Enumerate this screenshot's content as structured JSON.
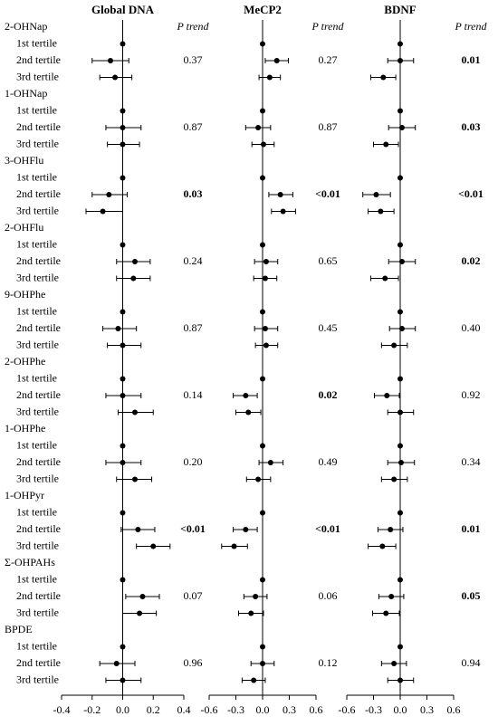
{
  "chart_data": {
    "type": "forest",
    "groups": [
      {
        "name": "2-OHNap",
        "tertiles": [
          "1st tertile",
          "2nd tertile",
          "3rd tertile"
        ]
      },
      {
        "name": "1-OHNap",
        "tertiles": [
          "1st tertile",
          "2nd tertile",
          "3rd tertile"
        ]
      },
      {
        "name": "3-OHFlu",
        "tertiles": [
          "1st tertile",
          "2nd tertile",
          "3rd tertile"
        ]
      },
      {
        "name": "2-OHFlu",
        "tertiles": [
          "1st tertile",
          "2nd tertile",
          "3rd tertile"
        ]
      },
      {
        "name": "9-OHPhe",
        "tertiles": [
          "1st tertile",
          "2nd tertile",
          "3rd tertile"
        ]
      },
      {
        "name": "2-OHPhe",
        "tertiles": [
          "1st tertile",
          "2nd tertile",
          "3rd tertile"
        ]
      },
      {
        "name": "1-OHPhe",
        "tertiles": [
          "1st tertile",
          "2nd tertile",
          "3rd tertile"
        ]
      },
      {
        "name": "1-OHPyr",
        "tertiles": [
          "1st tertile",
          "2nd tertile",
          "3rd tertile"
        ]
      },
      {
        "name": "Σ-OHPAHs",
        "tertiles": [
          "1st tertile",
          "2nd tertile",
          "3rd tertile"
        ]
      },
      {
        "name": "BPDE",
        "tertiles": [
          "1st tertile",
          "2nd tertile",
          "3rd tertile"
        ]
      }
    ],
    "panels": [
      {
        "title": "Global DNA",
        "p_label": "P trend",
        "xlim": [
          -0.4,
          0.4
        ],
        "xticks": [
          -0.4,
          -0.2,
          {
            "value": 0,
            "label": "0.0"
          },
          0.2,
          0.4
        ],
        "estimates": [
          [
            0,
            -0.08,
            -0.05
          ],
          [
            0,
            0.0,
            0.0
          ],
          [
            0,
            -0.09,
            -0.13
          ],
          [
            0,
            0.08,
            0.07
          ],
          [
            0,
            -0.03,
            0.0
          ],
          [
            0,
            0.0,
            0.08
          ],
          [
            0,
            0.0,
            0.08
          ],
          [
            0,
            0.1,
            0.2
          ],
          [
            0,
            0.13,
            0.11
          ],
          [
            0,
            -0.04,
            0.0
          ]
        ],
        "lower": [
          [
            null,
            -0.2,
            -0.15
          ],
          [
            null,
            -0.11,
            -0.1
          ],
          [
            null,
            -0.2,
            -0.24
          ],
          [
            null,
            -0.04,
            -0.04
          ],
          [
            null,
            -0.13,
            -0.1
          ],
          [
            null,
            -0.11,
            -0.03
          ],
          [
            null,
            -0.11,
            -0.04
          ],
          [
            null,
            -0.01,
            0.09
          ],
          [
            null,
            0.02,
            0.0
          ],
          [
            null,
            -0.15,
            -0.11
          ]
        ],
        "upper": [
          [
            null,
            0.04,
            0.06
          ],
          [
            null,
            0.12,
            0.11
          ],
          [
            null,
            0.03,
            0.0
          ],
          [
            null,
            0.18,
            0.18
          ],
          [
            null,
            0.09,
            0.12
          ],
          [
            null,
            0.12,
            0.2
          ],
          [
            null,
            0.12,
            0.19
          ],
          [
            null,
            0.21,
            0.31
          ],
          [
            null,
            0.24,
            0.22
          ],
          [
            null,
            0.08,
            0.12
          ]
        ],
        "p_trend": [
          "0.37",
          "0.87",
          "0.03",
          "0.24",
          "0.87",
          "0.14",
          "0.20",
          "<0.01",
          "0.07",
          "0.96"
        ],
        "p_bold": [
          false,
          false,
          true,
          false,
          false,
          false,
          false,
          true,
          false,
          false
        ]
      },
      {
        "title": "MeCP2",
        "p_label": "P trend",
        "xlim": [
          -0.6,
          0.6
        ],
        "xticks": [
          -0.6,
          -0.3,
          {
            "value": 0,
            "label": "0.0"
          },
          0.3,
          0.6
        ],
        "estimates": [
          [
            0,
            0.16,
            0.08
          ],
          [
            0,
            -0.05,
            0.01
          ],
          [
            0,
            0.2,
            0.23
          ],
          [
            0,
            0.04,
            0.03
          ],
          [
            0,
            0.03,
            0.04
          ],
          [
            0,
            -0.19,
            -0.16
          ],
          [
            0,
            0.09,
            -0.05
          ],
          [
            0,
            -0.19,
            -0.32
          ],
          [
            0,
            -0.08,
            -0.13
          ],
          [
            0,
            0.0,
            -0.1
          ]
        ],
        "lower": [
          [
            null,
            0.03,
            -0.04
          ],
          [
            null,
            -0.19,
            -0.12
          ],
          [
            null,
            0.07,
            0.1
          ],
          [
            null,
            -0.09,
            -0.1
          ],
          [
            null,
            -0.09,
            -0.08
          ],
          [
            null,
            -0.33,
            -0.3
          ],
          [
            null,
            -0.04,
            -0.18
          ],
          [
            null,
            -0.33,
            -0.46
          ],
          [
            null,
            -0.21,
            -0.27
          ],
          [
            null,
            -0.13,
            -0.23
          ]
        ],
        "upper": [
          [
            null,
            0.29,
            0.2
          ],
          [
            null,
            0.09,
            0.13
          ],
          [
            null,
            0.34,
            0.37
          ],
          [
            null,
            0.17,
            0.16
          ],
          [
            null,
            0.17,
            0.17
          ],
          [
            null,
            -0.06,
            -0.02
          ],
          [
            null,
            0.23,
            0.09
          ],
          [
            null,
            -0.06,
            -0.17
          ],
          [
            null,
            0.05,
            0.01
          ],
          [
            null,
            0.13,
            0.03
          ]
        ],
        "p_trend": [
          "0.27",
          "0.87",
          "<0.01",
          "0.65",
          "0.45",
          "0.02",
          "0.49",
          "<0.01",
          "0.06",
          "0.12"
        ],
        "p_bold": [
          false,
          false,
          true,
          false,
          false,
          true,
          false,
          true,
          false,
          false
        ]
      },
      {
        "title": "BDNF",
        "p_label": "P trend",
        "xlim": [
          -0.6,
          0.6
        ],
        "xticks": [
          -0.6,
          -0.3,
          {
            "value": 0,
            "label": "0.0"
          },
          0.3,
          0.6
        ],
        "estimates": [
          [
            0,
            0.0,
            -0.19
          ],
          [
            0,
            0.02,
            -0.16
          ],
          [
            0,
            -0.27,
            -0.22
          ],
          [
            0,
            0.02,
            -0.17
          ],
          [
            0,
            0.02,
            -0.07
          ],
          [
            0,
            -0.15,
            0.0
          ],
          [
            0,
            0.01,
            -0.07
          ],
          [
            0,
            -0.11,
            -0.2
          ],
          [
            0,
            -0.1,
            -0.16
          ],
          [
            0,
            -0.07,
            0.0
          ]
        ],
        "lower": [
          [
            null,
            -0.14,
            -0.33
          ],
          [
            null,
            -0.13,
            -0.3
          ],
          [
            null,
            -0.42,
            -0.36
          ],
          [
            null,
            -0.13,
            -0.33
          ],
          [
            null,
            -0.12,
            -0.21
          ],
          [
            null,
            -0.29,
            -0.14
          ],
          [
            null,
            -0.14,
            -0.21
          ],
          [
            null,
            -0.25,
            -0.36
          ],
          [
            null,
            -0.24,
            -0.31
          ],
          [
            null,
            -0.21,
            -0.14
          ]
        ],
        "upper": [
          [
            null,
            0.15,
            -0.05
          ],
          [
            null,
            0.17,
            -0.02
          ],
          [
            null,
            -0.11,
            -0.07
          ],
          [
            null,
            0.17,
            -0.02
          ],
          [
            null,
            0.17,
            0.08
          ],
          [
            null,
            -0.01,
            0.15
          ],
          [
            null,
            0.16,
            0.08
          ],
          [
            null,
            0.03,
            -0.05
          ],
          [
            null,
            0.04,
            -0.01
          ],
          [
            null,
            0.07,
            0.15
          ]
        ],
        "p_trend": [
          "0.01",
          "0.03",
          "<0.01",
          "0.02",
          "0.40",
          "0.92",
          "0.34",
          "0.01",
          "0.05",
          "0.94"
        ],
        "p_bold": [
          true,
          true,
          true,
          true,
          false,
          false,
          false,
          true,
          true,
          false
        ]
      }
    ]
  }
}
